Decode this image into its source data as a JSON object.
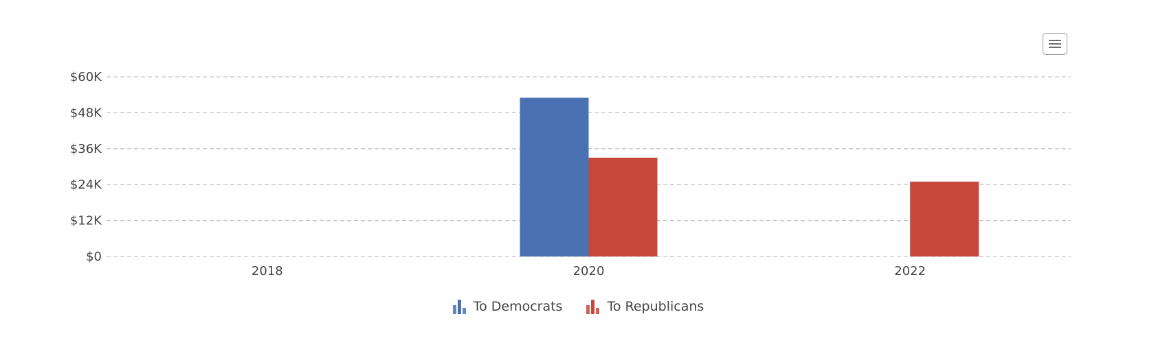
{
  "chart_data": {
    "type": "bar",
    "categories": [
      "2018",
      "2020",
      "2022"
    ],
    "series": [
      {
        "name": "To Democrats",
        "values": [
          0,
          53000,
          0
        ],
        "color": "#4a72b2"
      },
      {
        "name": "To Republicans",
        "values": [
          0,
          33000,
          25000
        ],
        "color": "#c7473a"
      }
    ],
    "ylim": [
      0,
      60000
    ],
    "yticks": [
      {
        "value": 0,
        "label": "$0"
      },
      {
        "value": 12000,
        "label": "$12K"
      },
      {
        "value": 24000,
        "label": "$24K"
      },
      {
        "value": 36000,
        "label": "$36K"
      },
      {
        "value": 48000,
        "label": "$48K"
      },
      {
        "value": 60000,
        "label": "$60K"
      }
    ],
    "grid": true,
    "legend_position": "bottom-center"
  },
  "menu": {
    "icon": "hamburger-menu-icon"
  }
}
